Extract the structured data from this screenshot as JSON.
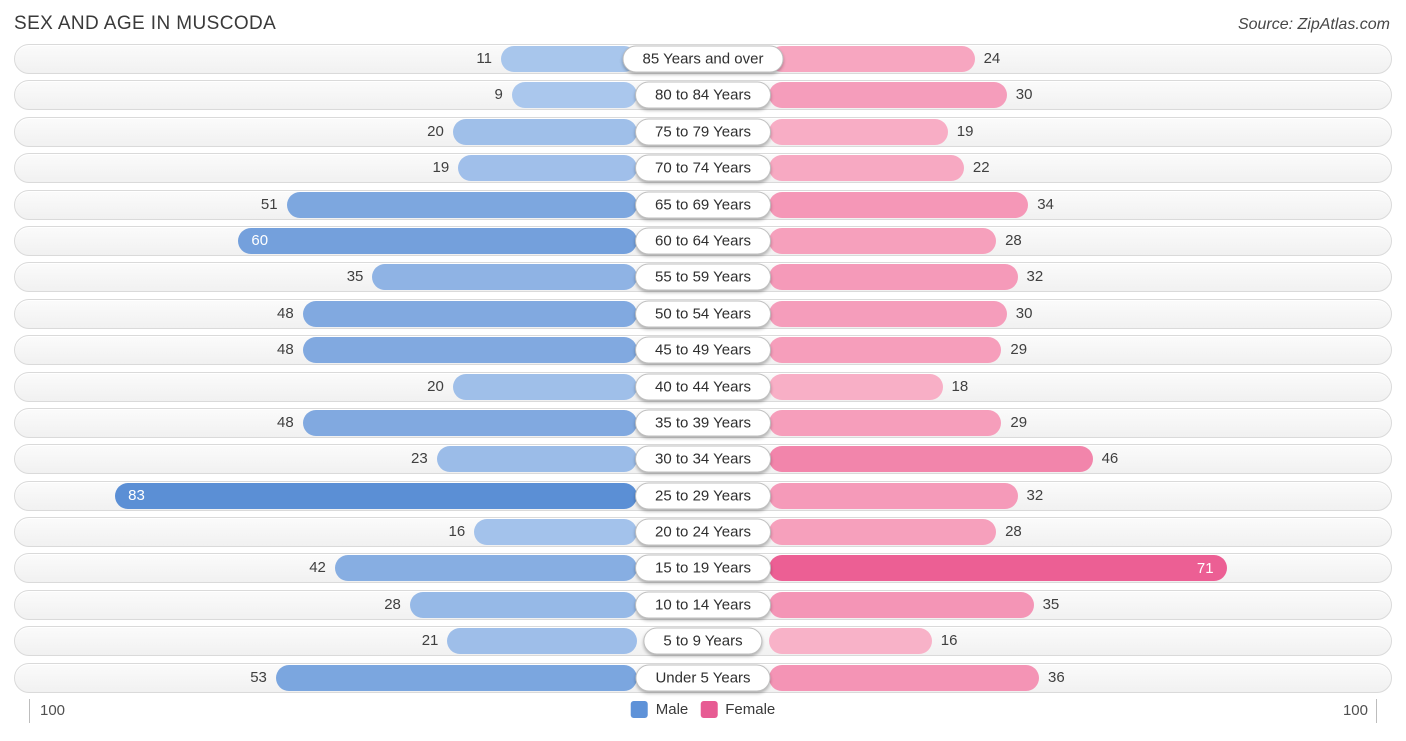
{
  "page": {
    "title": "SEX AND AGE IN MUSCODA",
    "source": "Source: ZipAtlas.com"
  },
  "axis": {
    "left_max_label": "100",
    "right_max_label": "100"
  },
  "legend": {
    "male_label": "Male",
    "female_label": "Female"
  },
  "colors": {
    "male_legend": "#5e92d8",
    "female_legend": "#e75b93",
    "male_bar_strong": "#5b8fd4",
    "male_bar_light": "#a8c6ec",
    "female_bar_strong": "#ec5f94",
    "female_bar_light": "#f8b2c8",
    "track_bg": "#f3f3f3",
    "track_border": "#dadada"
  },
  "chart_data": {
    "type": "bar",
    "subtype": "population-pyramid",
    "title": "SEX AND AGE IN MUSCODA",
    "orientation": "horizontal",
    "categories": [
      "85 Years and over",
      "80 to 84 Years",
      "75 to 79 Years",
      "70 to 74 Years",
      "65 to 69 Years",
      "60 to 64 Years",
      "55 to 59 Years",
      "50 to 54 Years",
      "45 to 49 Years",
      "40 to 44 Years",
      "35 to 39 Years",
      "30 to 34 Years",
      "25 to 29 Years",
      "20 to 24 Years",
      "15 to 19 Years",
      "10 to 14 Years",
      "5 to 9 Years",
      "Under 5 Years"
    ],
    "series": [
      {
        "name": "Male",
        "side": "left",
        "values": [
          11,
          9,
          20,
          19,
          51,
          60,
          35,
          48,
          48,
          20,
          48,
          23,
          83,
          16,
          42,
          28,
          21,
          53
        ]
      },
      {
        "name": "Female",
        "side": "right",
        "values": [
          24,
          30,
          19,
          22,
          34,
          28,
          32,
          30,
          29,
          18,
          29,
          46,
          32,
          28,
          71,
          35,
          16,
          36
        ]
      }
    ],
    "xlim": [
      0,
      100
    ],
    "grid": false,
    "legend_position": "bottom",
    "value_labels": "outside bar ends; rendered inside bar in white when value >= 60"
  }
}
